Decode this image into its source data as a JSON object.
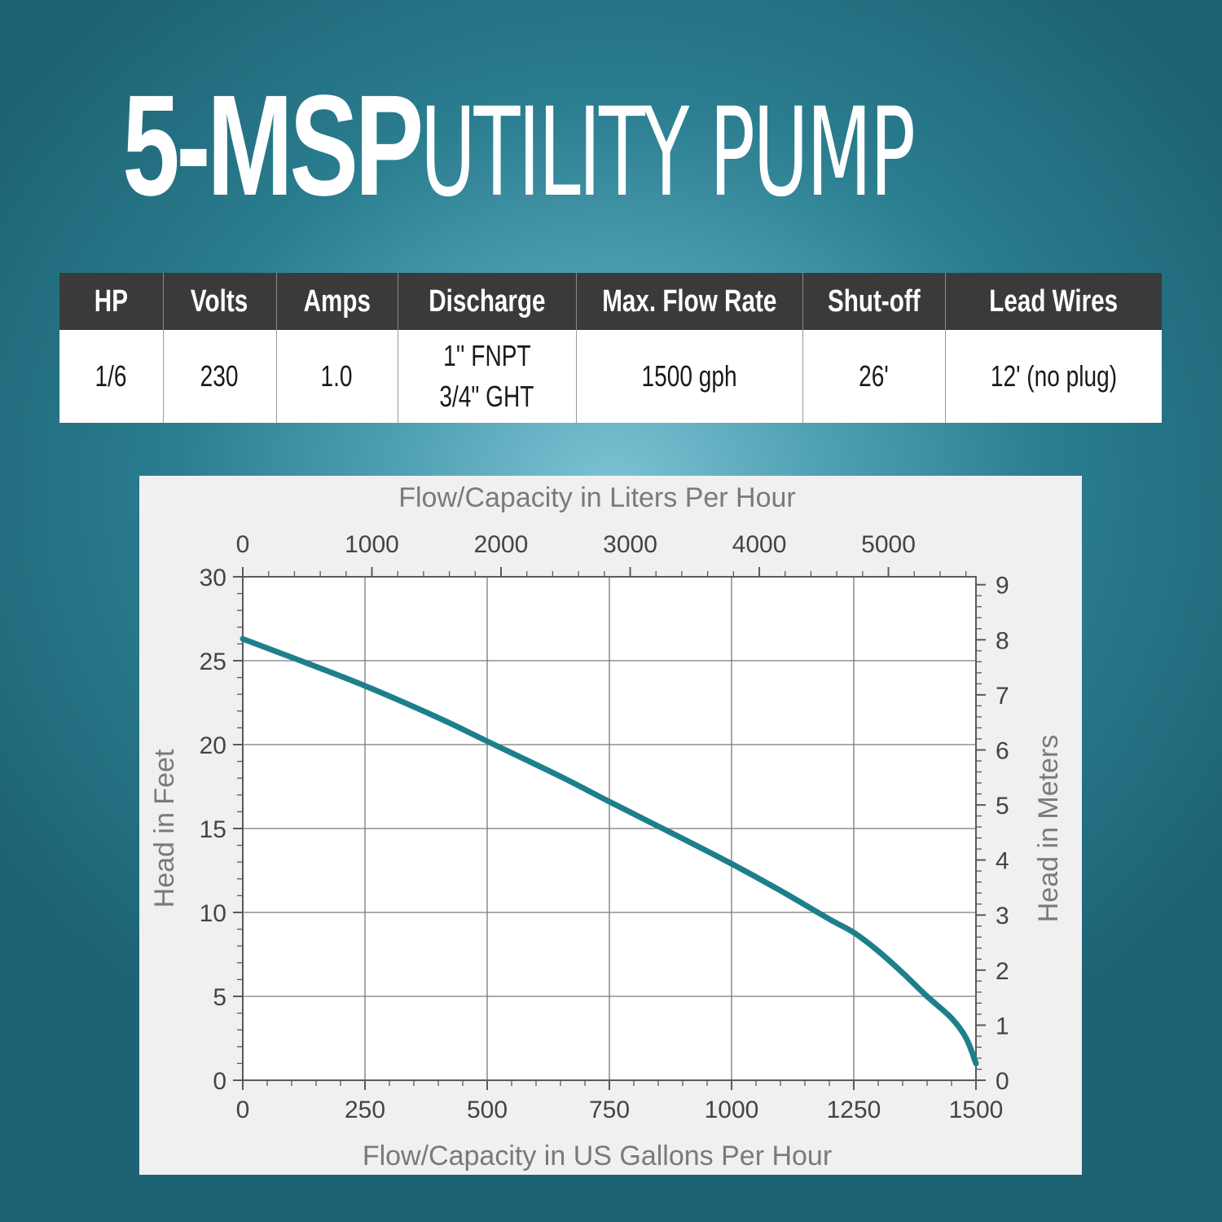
{
  "title": {
    "bold": "5-MSP",
    "light": "UTILITY PUMP"
  },
  "specs": {
    "headers": [
      "HP",
      "Volts",
      "Amps",
      "Discharge",
      "Max. Flow Rate",
      "Shut-off",
      "Lead Wires"
    ],
    "values": {
      "hp": "1/6",
      "volts": "230",
      "amps": "1.0",
      "discharge_line1": "1'' FNPT",
      "discharge_line2": "3/4\" GHT",
      "max_flow": "1500 gph",
      "shutoff": "26'",
      "lead_wires": "12' (no plug)"
    }
  },
  "colors": {
    "curve": "#1e7f8c",
    "header_bg": "#3a3a3a",
    "axis_text": "#7a7a7a"
  },
  "chart_data": {
    "type": "line",
    "title": "",
    "xlabel": "Flow/Capacity in US Gallons Per Hour",
    "ylabel": "Head in Feet",
    "x2label": "Flow/Capacity in Liters Per Hour",
    "y2label": "Head in Meters",
    "xlim": [
      0,
      1500
    ],
    "ylim": [
      0,
      30
    ],
    "x2lim": [
      0,
      5678
    ],
    "y2lim": [
      0,
      9.144
    ],
    "xticks": [
      0,
      250,
      500,
      750,
      1000,
      1250,
      1500
    ],
    "yticks": [
      0,
      5,
      10,
      15,
      20,
      25,
      30
    ],
    "x2ticks": [
      0,
      1000,
      2000,
      3000,
      4000,
      5000
    ],
    "y2ticks": [
      0,
      1,
      2,
      3,
      4,
      5,
      6,
      7,
      8,
      9
    ],
    "grid": true,
    "legend": "none",
    "series": [
      {
        "x": [
          0,
          100,
          250,
          400,
          500,
          650,
          750,
          900,
          1000,
          1100,
          1200,
          1250,
          1300,
          1350,
          1400,
          1450,
          1480,
          1500
        ],
        "y": [
          26.3,
          25.2,
          23.5,
          21.6,
          20.2,
          18.1,
          16.6,
          14.4,
          12.9,
          11.3,
          9.6,
          8.8,
          7.7,
          6.4,
          5.0,
          3.7,
          2.5,
          1.0
        ]
      }
    ]
  }
}
